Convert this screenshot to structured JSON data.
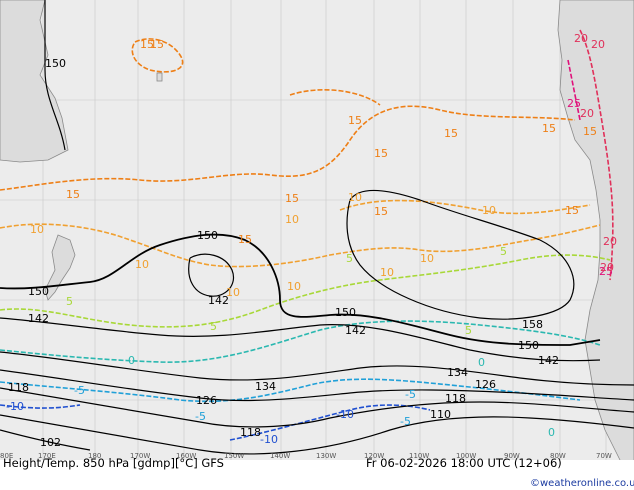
{
  "map": {
    "title": "Height/Temp. 850 hPa [gdmp][°C] GFS",
    "valid_time": "Fr 06-02-2026 18:00 UTC (12+06)",
    "credit": "©weatheronline.co.uk",
    "longitude_labels": [
      "80E",
      "170E",
      "180",
      "170W",
      "160W",
      "150W",
      "140W",
      "130W",
      "120W",
      "110W",
      "100W",
      "90W",
      "80W",
      "70W"
    ],
    "height_contour_labels": [
      "150",
      "150",
      "150",
      "142",
      "142",
      "142",
      "150",
      "150",
      "158",
      "142",
      "134",
      "134",
      "126",
      "126",
      "118",
      "118",
      "118",
      "110",
      "102"
    ],
    "temperature_contour_labels": [
      "15",
      "15",
      "15",
      "15",
      "15",
      "15",
      "15",
      "15",
      "15",
      "15",
      "15",
      "10",
      "10",
      "10",
      "10",
      "10",
      "10",
      "10",
      "10",
      "10",
      "5",
      "5",
      "5",
      "5",
      "5",
      "0",
      "0",
      "-5",
      "-5",
      "-5",
      "-10",
      "-10",
      "-10",
      "-5",
      "0",
      "20",
      "20",
      "20",
      "25",
      "20",
      "25",
      "20",
      "15"
    ],
    "colors": {
      "background": "#ececec",
      "land": "#e2e2e2",
      "height_contour": "#000000",
      "temp_15": "#ee7f16",
      "temp_10": "#f0a030",
      "temp_5": "#a8d838",
      "temp_0": "#2ab8b0",
      "temp_minus5": "#20a0d8",
      "temp_minus10": "#2050d0",
      "temp_20": "#e0305a",
      "temp_25": "#e0107a",
      "grid": "#c8c8c8"
    }
  }
}
